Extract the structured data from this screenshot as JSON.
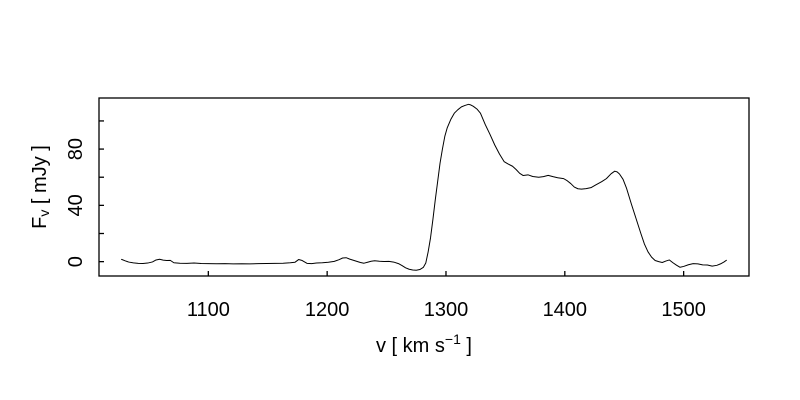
{
  "page": {
    "background": "#ffffff",
    "foreground": "#000000"
  },
  "chart_data": {
    "type": "line",
    "title": "",
    "description": "Single-dish radio spectrum: flux density versus velocity with a double-horned emission profile",
    "xlabel": {
      "text": "v [ km s^-1 ]",
      "prefix": "v [ km s",
      "superscript": "−1",
      "suffix": " ]"
    },
    "ylabel": {
      "text": "F_v [ mJy ]",
      "prefix": "F",
      "subscript": "v",
      "suffix": " [ mJy ]"
    },
    "xlim": [
      1008,
      1555
    ],
    "ylim": [
      -10.2,
      116.3
    ],
    "grid": false,
    "legend": null,
    "frame": "box",
    "tick_style": "inward",
    "line_color": "#000000",
    "axis_color": "#000000",
    "x_ticks": {
      "major": [
        1100,
        1200,
        1300,
        1400,
        1500
      ],
      "labels": [
        "1100",
        "1200",
        "1300",
        "1400",
        "1500"
      ]
    },
    "y_ticks": {
      "major": [
        0,
        20,
        40,
        60,
        80,
        100
      ],
      "labeled": [
        0,
        40,
        80
      ],
      "labels": [
        "0",
        "40",
        "80"
      ]
    },
    "series": [
      {
        "name": "spectrum",
        "points": [
          [
            1027,
            1.6
          ],
          [
            1030,
            0.6
          ],
          [
            1033,
            -0.3
          ],
          [
            1037,
            -0.9
          ],
          [
            1041,
            -1.2
          ],
          [
            1045,
            -1.3
          ],
          [
            1049,
            -1.0
          ],
          [
            1053,
            -0.2
          ],
          [
            1056,
            1.2
          ],
          [
            1059,
            1.7
          ],
          [
            1062,
            1.1
          ],
          [
            1065,
            0.8
          ],
          [
            1068,
            0.9
          ],
          [
            1071,
            -0.8
          ],
          [
            1076,
            -1.1
          ],
          [
            1082,
            -1.2
          ],
          [
            1088,
            -1.0
          ],
          [
            1094,
            -1.3
          ],
          [
            1100,
            -1.4
          ],
          [
            1107,
            -1.5
          ],
          [
            1114,
            -1.4
          ],
          [
            1121,
            -1.6
          ],
          [
            1128,
            -1.5
          ],
          [
            1135,
            -1.6
          ],
          [
            1142,
            -1.4
          ],
          [
            1149,
            -1.3
          ],
          [
            1156,
            -1.2
          ],
          [
            1163,
            -1.1
          ],
          [
            1169,
            -0.8
          ],
          [
            1173,
            -0.4
          ],
          [
            1176,
            1.5
          ],
          [
            1179,
            0.8
          ],
          [
            1183,
            -1.2
          ],
          [
            1187,
            -1.4
          ],
          [
            1191,
            -1.0
          ],
          [
            1196,
            -0.8
          ],
          [
            1201,
            -0.4
          ],
          [
            1206,
            0.2
          ],
          [
            1210,
            1.4
          ],
          [
            1213,
            2.6
          ],
          [
            1216,
            2.8
          ],
          [
            1219,
            1.8
          ],
          [
            1222,
            1.0
          ],
          [
            1225,
            0.2
          ],
          [
            1228,
            -0.6
          ],
          [
            1231,
            -1.1
          ],
          [
            1234,
            -0.4
          ],
          [
            1237,
            0.3
          ],
          [
            1240,
            0.6
          ],
          [
            1244,
            0.3
          ],
          [
            1248,
            0.1
          ],
          [
            1252,
            0.2
          ],
          [
            1256,
            -0.3
          ],
          [
            1260,
            -1.4
          ],
          [
            1263,
            -2.8
          ],
          [
            1266,
            -4.4
          ],
          [
            1269,
            -5.4
          ],
          [
            1272,
            -5.9
          ],
          [
            1275,
            -6.1
          ],
          [
            1278,
            -5.6
          ],
          [
            1281,
            -4.0
          ],
          [
            1283,
            -1.0
          ],
          [
            1285,
            7.0
          ],
          [
            1287,
            17.0
          ],
          [
            1289,
            30.0
          ],
          [
            1291,
            44.0
          ],
          [
            1293,
            57.0
          ],
          [
            1295,
            70.0
          ],
          [
            1297,
            80.0
          ],
          [
            1299,
            89.0
          ],
          [
            1301,
            95.0
          ],
          [
            1304,
            101.0
          ],
          [
            1307,
            105.5
          ],
          [
            1310,
            108.0
          ],
          [
            1313,
            110.0
          ],
          [
            1316,
            111.0
          ],
          [
            1319,
            111.8
          ],
          [
            1321,
            111.3
          ],
          [
            1323,
            110.4
          ],
          [
            1326,
            108.5
          ],
          [
            1329,
            105.5
          ],
          [
            1333,
            97.5
          ],
          [
            1337,
            90.5
          ],
          [
            1341,
            83.0
          ],
          [
            1345,
            76.5
          ],
          [
            1349,
            71.0
          ],
          [
            1352,
            69.5
          ],
          [
            1356,
            67.8
          ],
          [
            1359,
            65.5
          ],
          [
            1362,
            62.8
          ],
          [
            1365,
            61.2
          ],
          [
            1369,
            61.7
          ],
          [
            1373,
            60.5
          ],
          [
            1378,
            60.0
          ],
          [
            1382,
            60.4
          ],
          [
            1386,
            61.3
          ],
          [
            1390,
            60.4
          ],
          [
            1394,
            59.6
          ],
          [
            1399,
            59.0
          ],
          [
            1402,
            57.5
          ],
          [
            1405,
            55.5
          ],
          [
            1408,
            53.0
          ],
          [
            1411,
            51.8
          ],
          [
            1414,
            51.5
          ],
          [
            1418,
            51.9
          ],
          [
            1422,
            52.6
          ],
          [
            1426,
            54.5
          ],
          [
            1431,
            56.8
          ],
          [
            1435,
            59.0
          ],
          [
            1439,
            62.5
          ],
          [
            1442,
            64.3
          ],
          [
            1444,
            63.8
          ],
          [
            1446,
            62.3
          ],
          [
            1449,
            58.5
          ],
          [
            1452,
            52.0
          ],
          [
            1456,
            41.0
          ],
          [
            1460,
            30.5
          ],
          [
            1464,
            20.0
          ],
          [
            1467,
            12.5
          ],
          [
            1470,
            7.0
          ],
          [
            1473,
            3.2
          ],
          [
            1476,
            0.8
          ],
          [
            1479,
            0.0
          ],
          [
            1482,
            -0.6
          ],
          [
            1485,
            0.4
          ],
          [
            1488,
            1.2
          ],
          [
            1491,
            -0.8
          ],
          [
            1494,
            -2.5
          ],
          [
            1497,
            -4.0
          ],
          [
            1500,
            -3.4
          ],
          [
            1504,
            -2.2
          ],
          [
            1508,
            -1.4
          ],
          [
            1512,
            -1.6
          ],
          [
            1516,
            -2.3
          ],
          [
            1520,
            -2.4
          ],
          [
            1524,
            -3.2
          ],
          [
            1528,
            -2.6
          ],
          [
            1531,
            -1.6
          ],
          [
            1534,
            -0.2
          ],
          [
            1536,
            1.0
          ]
        ]
      }
    ]
  }
}
